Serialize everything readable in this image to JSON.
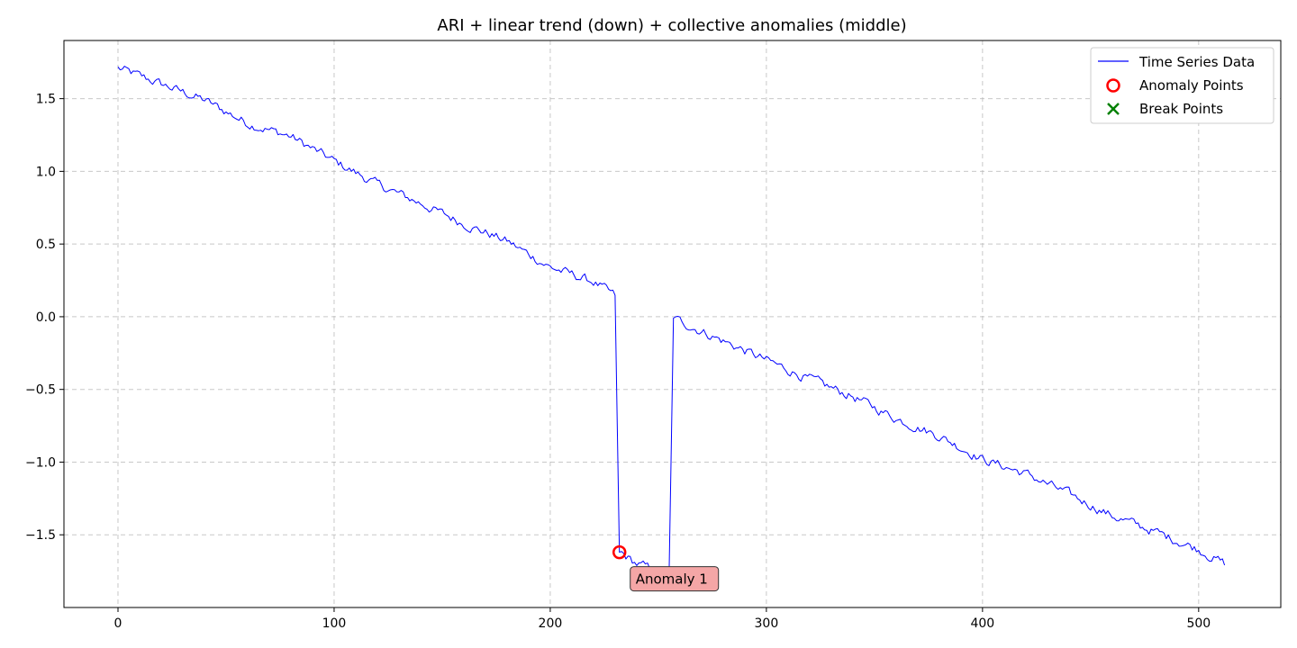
{
  "chart_data": {
    "type": "line",
    "title": "ARI + linear trend (down) + collective anomalies (middle)",
    "xlabel": "",
    "ylabel": "",
    "xlim": [
      -25,
      538
    ],
    "ylim": [
      -2.0,
      1.9
    ],
    "xticks": [
      0,
      100,
      200,
      300,
      400,
      500
    ],
    "xtick_labels": [
      "0",
      "100",
      "200",
      "300",
      "400",
      "500"
    ],
    "yticks": [
      1.5,
      1.0,
      0.5,
      0.0,
      -0.5,
      -1.0,
      -1.5
    ],
    "ytick_labels": [
      "1.5",
      "1.0",
      "0.5",
      "0.0",
      "−0.5",
      "−1.0",
      "−1.5"
    ],
    "grid": true,
    "legend_position": "upper right",
    "series": [
      {
        "name": "Time Series Data",
        "color": "#0000ff",
        "n_points": 513,
        "anchor_points": [
          {
            "x": 0,
            "y": 1.71
          },
          {
            "x": 20,
            "y": 1.6
          },
          {
            "x": 40,
            "y": 1.49
          },
          {
            "x": 60,
            "y": 1.33
          },
          {
            "x": 80,
            "y": 1.24
          },
          {
            "x": 100,
            "y": 1.07
          },
          {
            "x": 120,
            "y": 0.91
          },
          {
            "x": 140,
            "y": 0.78
          },
          {
            "x": 160,
            "y": 0.64
          },
          {
            "x": 180,
            "y": 0.52
          },
          {
            "x": 200,
            "y": 0.34
          },
          {
            "x": 220,
            "y": 0.24
          },
          {
            "x": 230,
            "y": 0.14
          },
          {
            "x": 232,
            "y": -1.62
          },
          {
            "x": 240,
            "y": -1.7
          },
          {
            "x": 255,
            "y": -1.78
          },
          {
            "x": 257,
            "y": -0.01
          },
          {
            "x": 270,
            "y": -0.1
          },
          {
            "x": 300,
            "y": -0.3
          },
          {
            "x": 320,
            "y": -0.43
          },
          {
            "x": 340,
            "y": -0.55
          },
          {
            "x": 360,
            "y": -0.7
          },
          {
            "x": 380,
            "y": -0.82
          },
          {
            "x": 400,
            "y": -0.98
          },
          {
            "x": 420,
            "y": -1.08
          },
          {
            "x": 440,
            "y": -1.22
          },
          {
            "x": 460,
            "y": -1.37
          },
          {
            "x": 480,
            "y": -1.48
          },
          {
            "x": 500,
            "y": -1.6
          },
          {
            "x": 512,
            "y": -1.7
          }
        ]
      }
    ],
    "anomaly_points": [
      {
        "x": 232,
        "y": -1.62
      }
    ],
    "break_points": [],
    "annotations": [
      {
        "text": "Anomaly 1",
        "x": 232,
        "y": -1.62,
        "bg_color": "#f4a6a6",
        "border_color": "#333333"
      }
    ],
    "legend": [
      {
        "label": "Time Series Data",
        "marker": "line",
        "color": "#0000ff"
      },
      {
        "label": "Anomaly Points",
        "marker": "circle",
        "color": "#ff0000"
      },
      {
        "label": "Break Points",
        "marker": "x",
        "color": "#008000"
      }
    ]
  }
}
